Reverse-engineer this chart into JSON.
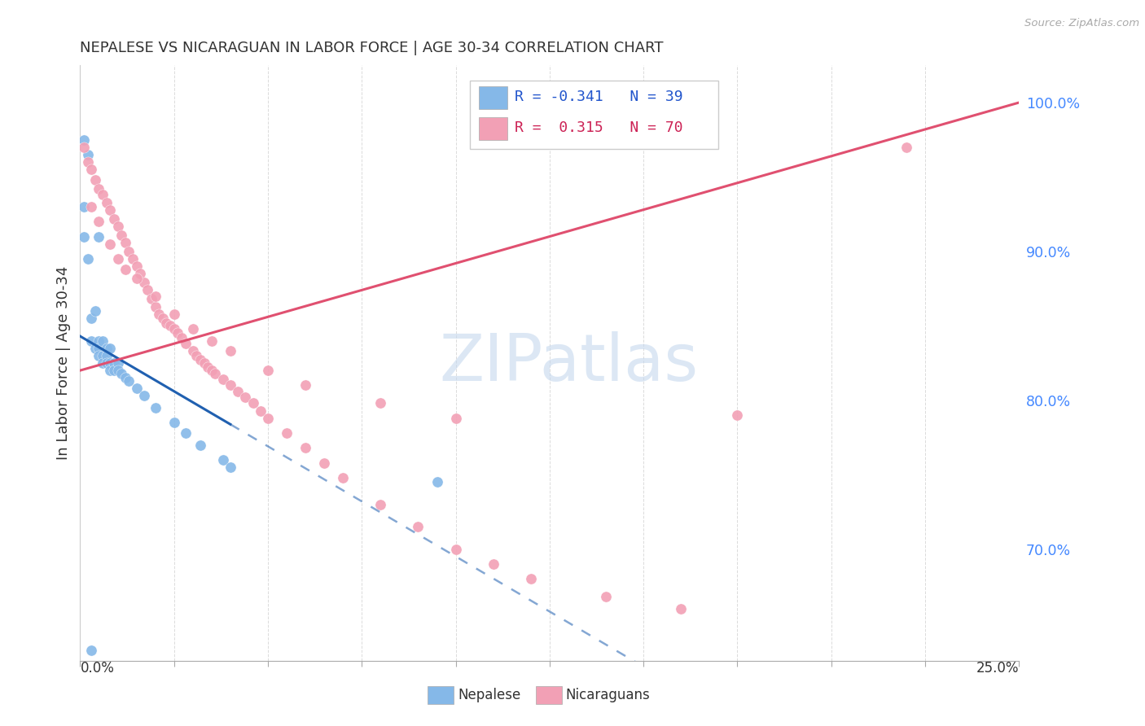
{
  "title": "NEPALESE VS NICARAGUAN IN LABOR FORCE | AGE 30-34 CORRELATION CHART",
  "source": "Source: ZipAtlas.com",
  "ylabel": "In Labor Force | Age 30-34",
  "xlim": [
    0.0,
    0.25
  ],
  "ylim": [
    0.625,
    1.025
  ],
  "right_yticks": [
    0.7,
    0.8,
    0.9,
    1.0
  ],
  "right_yticklabels": [
    "70.0%",
    "80.0%",
    "90.0%",
    "100.0%"
  ],
  "nepalese_color": "#85b8e8",
  "nicaraguan_color": "#f2a0b5",
  "nepalese_trend_color": "#2060b0",
  "nicaraguan_trend_color": "#e05070",
  "nepalese_trend_solid_end": 0.04,
  "nepalese_trend_x0": 0.0,
  "nepalese_trend_y0": 0.843,
  "nepalese_trend_slope": -1.48,
  "nicaraguan_trend_x0": 0.0,
  "nicaraguan_trend_y0": 0.82,
  "nicaraguan_trend_slope": 0.72,
  "watermark_color": "#c5d8ee",
  "background_color": "#ffffff",
  "grid_color": "#cccccc",
  "legend_R1": "R = -0.341",
  "legend_N1": "N = 39",
  "legend_R2": "R =  0.315",
  "legend_N2": "N = 70",
  "nepalese_x": [
    0.001,
    0.001,
    0.001,
    0.002,
    0.002,
    0.003,
    0.003,
    0.004,
    0.004,
    0.005,
    0.005,
    0.005,
    0.006,
    0.006,
    0.006,
    0.007,
    0.007,
    0.007,
    0.008,
    0.008,
    0.008,
    0.009,
    0.009,
    0.01,
    0.01,
    0.011,
    0.012,
    0.013,
    0.015,
    0.017,
    0.02,
    0.025,
    0.028,
    0.032,
    0.038,
    0.04,
    0.095,
    0.005,
    0.003
  ],
  "nepalese_y": [
    0.975,
    0.93,
    0.91,
    0.965,
    0.895,
    0.855,
    0.84,
    0.86,
    0.835,
    0.84,
    0.835,
    0.83,
    0.84,
    0.83,
    0.825,
    0.835,
    0.83,
    0.825,
    0.835,
    0.825,
    0.82,
    0.825,
    0.82,
    0.825,
    0.82,
    0.818,
    0.815,
    0.813,
    0.808,
    0.803,
    0.795,
    0.785,
    0.778,
    0.77,
    0.76,
    0.755,
    0.745,
    0.91,
    0.632
  ],
  "nicaraguan_x": [
    0.001,
    0.002,
    0.003,
    0.004,
    0.005,
    0.006,
    0.007,
    0.008,
    0.009,
    0.01,
    0.011,
    0.012,
    0.013,
    0.014,
    0.015,
    0.016,
    0.017,
    0.018,
    0.019,
    0.02,
    0.021,
    0.022,
    0.023,
    0.024,
    0.025,
    0.026,
    0.027,
    0.028,
    0.03,
    0.031,
    0.032,
    0.033,
    0.034,
    0.035,
    0.036,
    0.038,
    0.04,
    0.042,
    0.044,
    0.046,
    0.048,
    0.05,
    0.055,
    0.06,
    0.065,
    0.07,
    0.08,
    0.09,
    0.1,
    0.11,
    0.12,
    0.14,
    0.16,
    0.175,
    0.22,
    0.003,
    0.005,
    0.008,
    0.01,
    0.012,
    0.015,
    0.02,
    0.025,
    0.03,
    0.035,
    0.04,
    0.05,
    0.06,
    0.08,
    0.1
  ],
  "nicaraguan_y": [
    0.97,
    0.96,
    0.955,
    0.948,
    0.942,
    0.938,
    0.933,
    0.928,
    0.922,
    0.917,
    0.911,
    0.906,
    0.9,
    0.895,
    0.89,
    0.885,
    0.879,
    0.874,
    0.868,
    0.863,
    0.858,
    0.855,
    0.852,
    0.85,
    0.848,
    0.845,
    0.842,
    0.838,
    0.833,
    0.83,
    0.827,
    0.825,
    0.822,
    0.82,
    0.818,
    0.814,
    0.81,
    0.806,
    0.802,
    0.798,
    0.793,
    0.788,
    0.778,
    0.768,
    0.758,
    0.748,
    0.73,
    0.715,
    0.7,
    0.69,
    0.68,
    0.668,
    0.66,
    0.79,
    0.97,
    0.93,
    0.92,
    0.905,
    0.895,
    0.888,
    0.882,
    0.87,
    0.858,
    0.848,
    0.84,
    0.833,
    0.82,
    0.81,
    0.798,
    0.788
  ]
}
